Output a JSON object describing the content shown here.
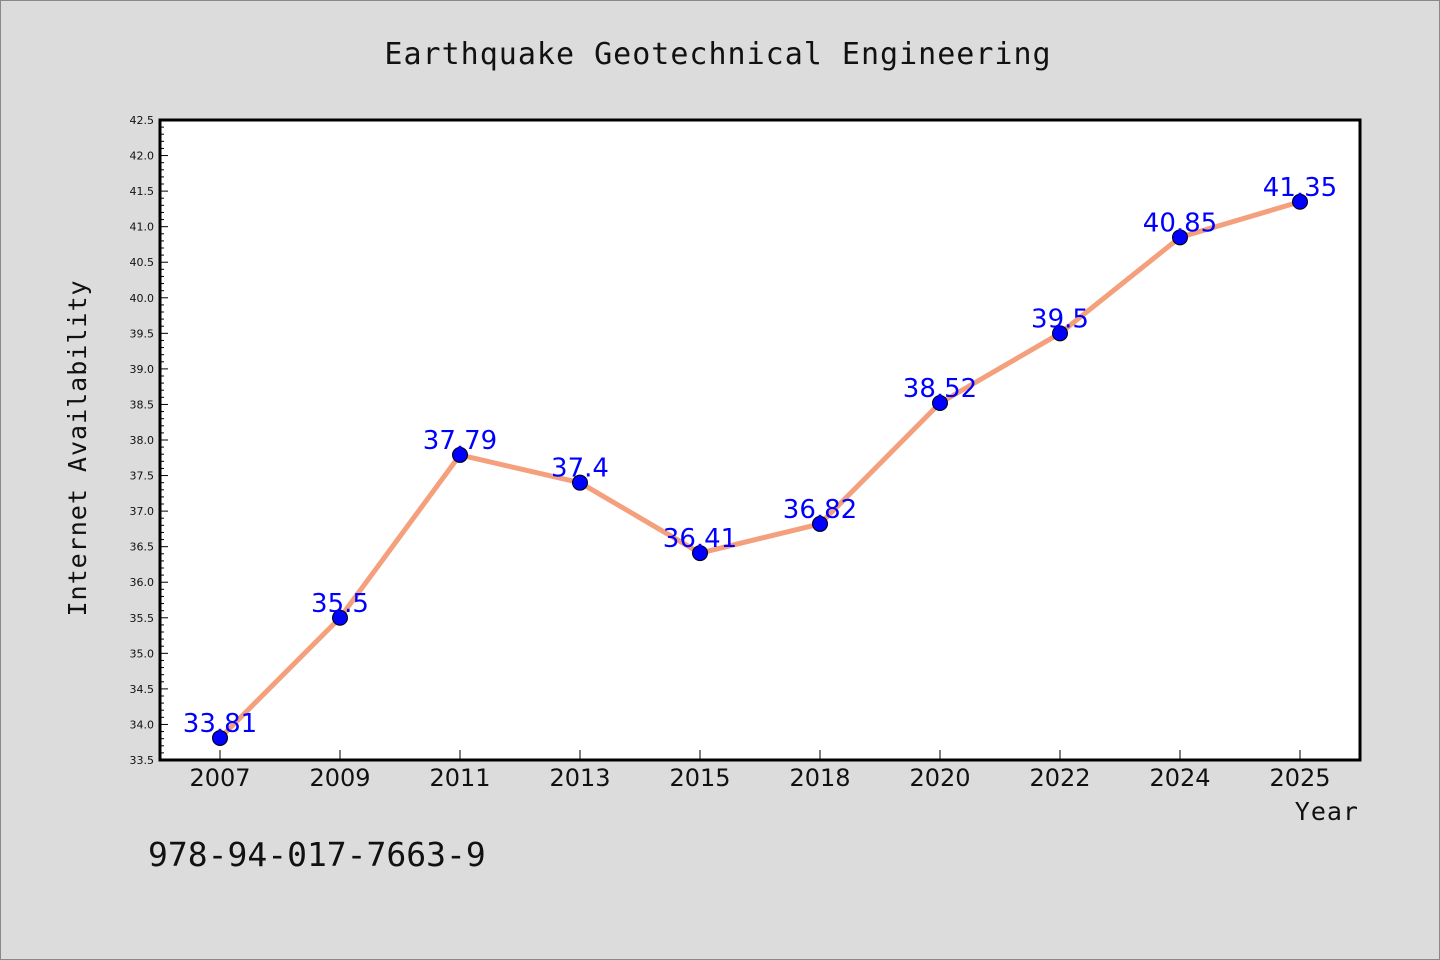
{
  "chart_data": {
    "type": "line",
    "title": "Earthquake Geotechnical Engineering",
    "xlabel": "Year",
    "ylabel": "Internet Availability",
    "categories": [
      "2007",
      "2009",
      "2011",
      "2013",
      "2015",
      "2018",
      "2020",
      "2022",
      "2024",
      "2025"
    ],
    "values": [
      33.81,
      35.5,
      37.79,
      37.4,
      36.41,
      36.82,
      38.52,
      39.5,
      40.85,
      41.35
    ],
    "data_labels": [
      "33.81",
      "35.5",
      "37.79",
      "37.4",
      "36.41",
      "36.82",
      "38.52",
      "39.5",
      "40.85",
      "41.35"
    ],
    "ylim": [
      33.5,
      42.5
    ],
    "yticks": [
      "33.5",
      "34.0",
      "34.5",
      "35.0",
      "35.5",
      "36.0",
      "36.5",
      "37.0",
      "37.5",
      "38.0",
      "38.5",
      "39.0",
      "39.5",
      "40.0",
      "40.5",
      "41.0",
      "41.5",
      "42.0",
      "42.5"
    ],
    "grid": false,
    "colors": {
      "line": "#f4a07c",
      "marker": "#0000ff",
      "data_label": "#0000ff",
      "background": "#dcdcdc",
      "plot_background": "#ffffff"
    }
  },
  "footer": {
    "isbn": "978-94-017-7663-9"
  }
}
